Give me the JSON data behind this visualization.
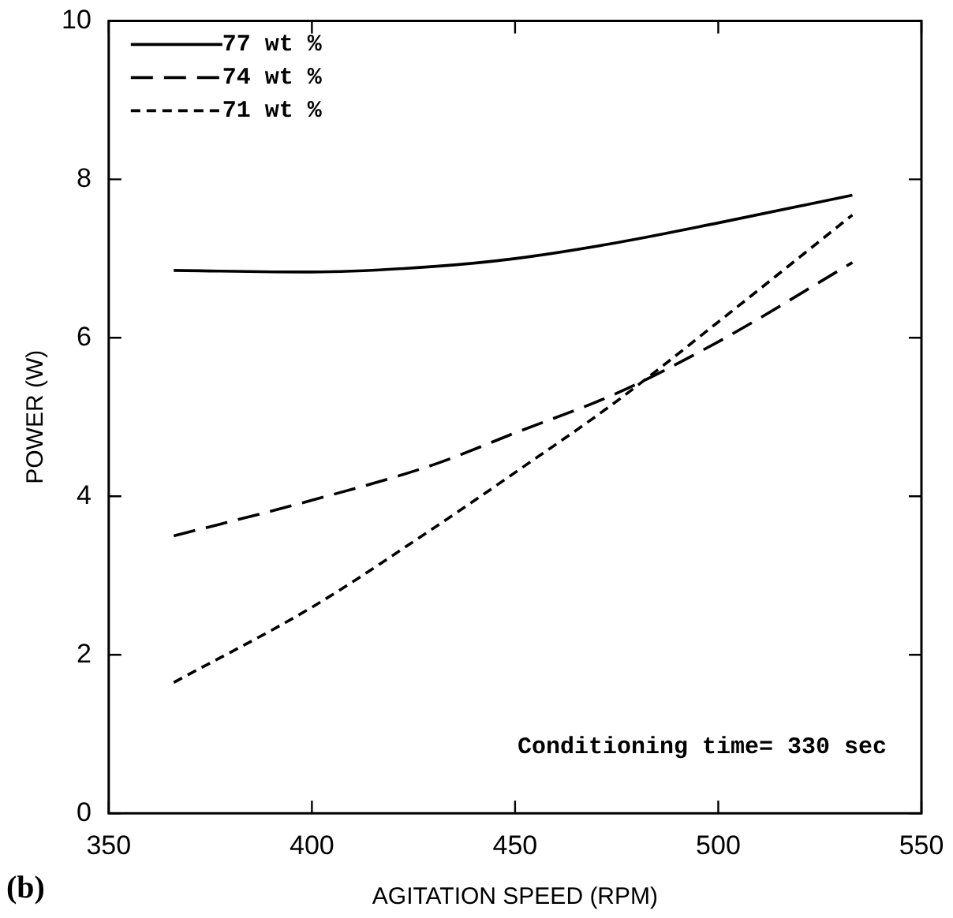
{
  "chart_data": {
    "type": "line",
    "xlabel": "AGITATION SPEED (RPM)",
    "ylabel": "POWER (W)",
    "xlim": [
      350,
      550
    ],
    "xticks": [
      350,
      400,
      450,
      500,
      550
    ],
    "ylim": [
      0,
      10
    ],
    "yticks": [
      0,
      2,
      4,
      6,
      8,
      10
    ],
    "legend": "top left",
    "marker": "none",
    "x": [
      366,
      400,
      430,
      450,
      475,
      500,
      533
    ],
    "series": [
      {
        "name": "77 wt %",
        "color": "#000000",
        "line_style": "solid",
        "values": [
          6.85,
          6.83,
          6.9,
          7.0,
          7.2,
          7.45,
          7.8
        ]
      },
      {
        "name": "74 wt %",
        "color": "#000000",
        "line_style": "dashed",
        "values": [
          3.5,
          3.95,
          4.4,
          4.8,
          5.3,
          5.95,
          6.95
        ]
      },
      {
        "name": "71 wt %",
        "color": "#000000",
        "line_style": "dotted",
        "values": [
          1.65,
          2.6,
          3.6,
          4.3,
          5.2,
          6.2,
          7.55
        ]
      }
    ],
    "annotations": [
      {
        "text": "Conditioning time= 330 sec"
      },
      {
        "text": "(b)"
      }
    ]
  }
}
